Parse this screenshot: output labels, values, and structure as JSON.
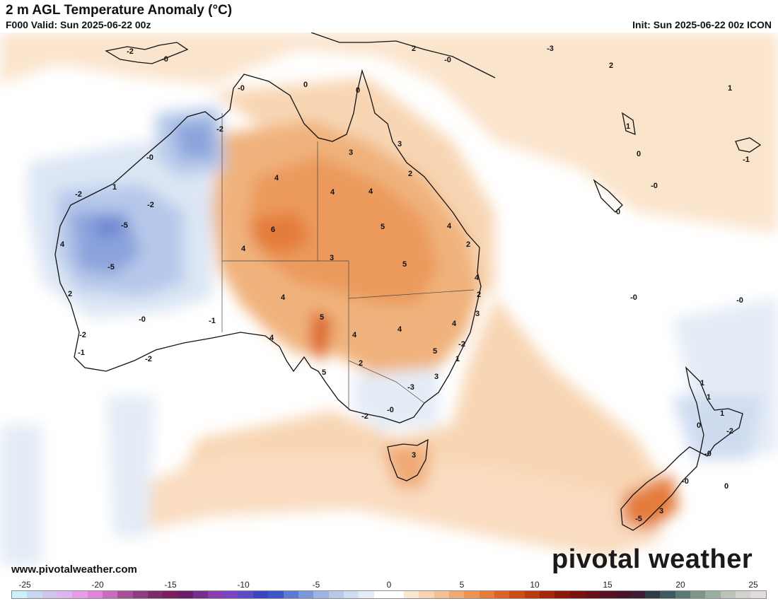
{
  "header": {
    "title": "2 m AGL Temperature Anomaly (°C)",
    "valid": "F000 Valid: Sun 2025-06-22 00z",
    "init": "Init: Sun 2025-06-22 00z ICON"
  },
  "footer": {
    "website": "www.pivotalweather.com",
    "brand": "pivotal weather"
  },
  "colorbar": {
    "tick_labels": [
      "-25",
      "-20",
      "-15",
      "-10",
      "-5",
      "0",
      "5",
      "10",
      "15",
      "20",
      "25"
    ],
    "colors": [
      "#c8f2f7",
      "#c8d8f0",
      "#d0c6ec",
      "#e0b4ec",
      "#e89ce8",
      "#e084dc",
      "#c86cc0",
      "#a85098",
      "#903c80",
      "#7c2c6c",
      "#7a1e60",
      "#6a1e6a",
      "#762e8c",
      "#8a3cb0",
      "#7a44c4",
      "#5a4cc4",
      "#3c46c0",
      "#3c58c8",
      "#5a7ad4",
      "#7c98dc",
      "#9cb4e4",
      "#b8caea",
      "#d0dcf0",
      "#e4ecf6",
      "#ffffff",
      "#ffffff",
      "#fbe6d2",
      "#f8d4b4",
      "#f4c094",
      "#f0aa74",
      "#ec9456",
      "#e47c3a",
      "#dc6424",
      "#cc4e14",
      "#b83c0c",
      "#a22a0a",
      "#8c1a0a",
      "#7a1210",
      "#6a1018",
      "#5a1020",
      "#4a1228",
      "#3e1c34",
      "#2e3a44",
      "#3e5a60",
      "#5a7a74",
      "#7c9688",
      "#9caea0",
      "#bcc4b8",
      "#d4d2cc",
      "#e4dcdc"
    ]
  },
  "map_labels": [
    {
      "text": "-2"
    },
    {
      "text": "-0"
    },
    {
      "text": "2"
    },
    {
      "text": "-0"
    },
    {
      "text": "-3"
    },
    {
      "text": "2"
    },
    {
      "text": "1"
    },
    {
      "text": "-0"
    },
    {
      "text": "0"
    },
    {
      "text": "0"
    },
    {
      "text": "-2"
    },
    {
      "text": "-0"
    },
    {
      "text": "3"
    },
    {
      "text": "3"
    },
    {
      "text": "1"
    },
    {
      "text": "0"
    },
    {
      "text": "-0"
    },
    {
      "text": "2"
    },
    {
      "text": "-1"
    },
    {
      "text": "-2"
    },
    {
      "text": "1"
    },
    {
      "text": "-2"
    },
    {
      "text": "4"
    },
    {
      "text": "4"
    },
    {
      "text": "4"
    },
    {
      "text": "0"
    },
    {
      "text": "-5"
    },
    {
      "text": "6"
    },
    {
      "text": "5"
    },
    {
      "text": "4"
    },
    {
      "text": "4"
    },
    {
      "text": "4"
    },
    {
      "text": "2"
    },
    {
      "text": "-5"
    },
    {
      "text": "3"
    },
    {
      "text": "5"
    },
    {
      "text": "4"
    },
    {
      "text": "2"
    },
    {
      "text": "4"
    },
    {
      "text": "2"
    },
    {
      "text": "-0"
    },
    {
      "text": "-0"
    },
    {
      "text": "-0"
    },
    {
      "text": "-1"
    },
    {
      "text": "5"
    },
    {
      "text": "3"
    },
    {
      "text": "4"
    },
    {
      "text": "4"
    },
    {
      "text": "4"
    },
    {
      "text": "-2"
    },
    {
      "text": "-2"
    },
    {
      "text": "4"
    },
    {
      "text": "-1"
    },
    {
      "text": "5"
    },
    {
      "text": "1"
    },
    {
      "text": "-2"
    },
    {
      "text": "2"
    },
    {
      "text": "5"
    },
    {
      "text": "3"
    },
    {
      "text": "-3"
    },
    {
      "text": "-0"
    },
    {
      "text": "-2"
    },
    {
      "text": "1"
    },
    {
      "text": "1"
    },
    {
      "text": "1"
    },
    {
      "text": "0"
    },
    {
      "text": "-2"
    },
    {
      "text": "-0"
    },
    {
      "text": "3"
    },
    {
      "text": "-0"
    },
    {
      "text": "0"
    },
    {
      "text": "3"
    },
    {
      "text": "-5"
    }
  ]
}
